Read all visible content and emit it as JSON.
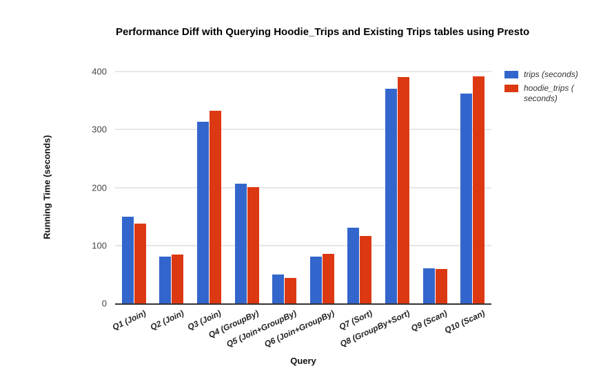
{
  "chart_data": {
    "type": "bar",
    "title": "Performance Diff with Querying Hoodie_Trips and Existing Trips tables using Presto",
    "xlabel": "Query",
    "ylabel": "Running Time (seconds)",
    "categories": [
      "Q1 (Join)",
      "Q2 (Join)",
      "Q3 (Join)",
      "Q4 (GroupBy)",
      "Q5 (Join+GroupBy)",
      "Q6 (Join+GroupBy)",
      "Q7 (Sort)",
      "Q8 (GroupBy+Sort)",
      "Q9 (Scan)",
      "Q10 (Scan)"
    ],
    "series": [
      {
        "name": "trips (seconds)",
        "color": "#3366cc",
        "values": [
          150,
          81,
          313,
          207,
          50,
          81,
          130,
          370,
          60,
          362
        ]
      },
      {
        "name": "hoodie_trips ( seconds)",
        "color": "#dc3912",
        "values": [
          138,
          84,
          332,
          201,
          44,
          85,
          116,
          390,
          59,
          392
        ]
      }
    ],
    "ylim": [
      0,
      400
    ],
    "yticks": [
      0,
      100,
      200,
      300,
      400
    ],
    "grid": true,
    "legend_position": "right"
  },
  "colors": {
    "gridline": "#cccccc",
    "axis_line": "#333333",
    "tick_text": "#444444"
  }
}
